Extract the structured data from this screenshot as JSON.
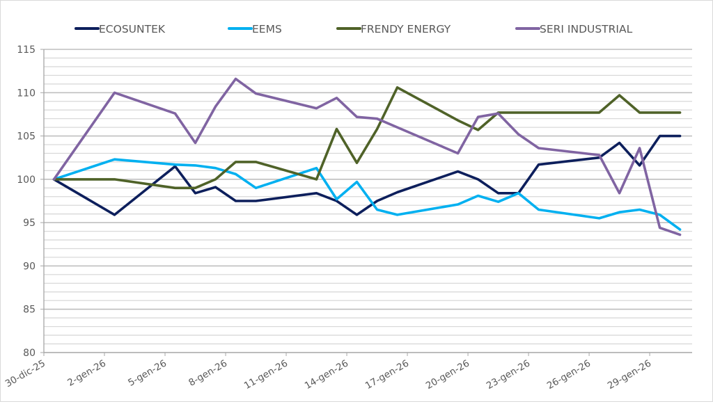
{
  "chart_data": {
    "type": "line",
    "title": "",
    "xlabel": "",
    "ylabel": "",
    "ylim": [
      80,
      115
    ],
    "y_major_step": 5,
    "y_minor_step": 1,
    "y_ticks": [
      "80",
      "85",
      "90",
      "95",
      "100",
      "105",
      "110",
      "115"
    ],
    "grid": true,
    "legend_position": "top",
    "x_tick_labels": [
      "30-dic-25",
      "2-gen-26",
      "5-gen-26",
      "8-gen-26",
      "11-gen-26",
      "14-gen-26",
      "17-gen-26",
      "20-gen-26",
      "23-gen-26",
      "26-gen-26",
      "29-gen-26"
    ],
    "x_tick_days": [
      0,
      3,
      6,
      9,
      12,
      15,
      18,
      21,
      24,
      27,
      30
    ],
    "x_days_range": [
      0,
      32.1
    ],
    "x": [
      "30-dic-25",
      "2-gen-26",
      "5-gen-26",
      "6-gen-26",
      "7-gen-26",
      "8-gen-26",
      "9-gen-26",
      "12-gen-26",
      "13-gen-26",
      "14-gen-26",
      "15-gen-26",
      "16-gen-26",
      "19-gen-26",
      "20-gen-26",
      "21-gen-26",
      "22-gen-26",
      "23-gen-26",
      "26-gen-26",
      "27-gen-26",
      "28-gen-26",
      "29-gen-26",
      "30-gen-26"
    ],
    "x_days": [
      0,
      3,
      6,
      7,
      8,
      9,
      10,
      13,
      14,
      15,
      16,
      17,
      20,
      21,
      22,
      23,
      24,
      27,
      28,
      29,
      30,
      31
    ],
    "series": [
      {
        "name": "ECOSUNTEK",
        "color": "#0d1f5c",
        "values": [
          100,
          95.9,
          101.5,
          98.4,
          99.1,
          97.5,
          97.5,
          98.4,
          97.5,
          95.9,
          97.5,
          98.5,
          100.9,
          100.0,
          98.4,
          98.4,
          101.7,
          102.5,
          104.2,
          101.6,
          105.0,
          105.0
        ]
      },
      {
        "name": "EEMS",
        "color": "#00b0f0",
        "values": [
          100,
          102.3,
          101.7,
          101.6,
          101.3,
          100.6,
          99.0,
          101.3,
          97.7,
          99.7,
          96.5,
          95.9,
          97.1,
          98.1,
          97.4,
          98.4,
          96.5,
          95.5,
          96.2,
          96.5,
          95.9,
          94.2
        ]
      },
      {
        "name": "FRENDY ENERGY",
        "color": "#4f6228",
        "values": [
          100,
          100,
          99.0,
          99.0,
          100,
          102.0,
          102.0,
          100,
          105.8,
          101.9,
          105.8,
          110.6,
          106.8,
          105.7,
          107.7,
          107.7,
          107.7,
          107.7,
          109.7,
          107.7,
          107.7,
          107.7
        ]
      },
      {
        "name": "SERI INDUSTRIAL",
        "color": "#8064a2",
        "values": [
          100,
          110.0,
          107.6,
          104.2,
          108.4,
          111.6,
          109.9,
          108.2,
          109.4,
          107.2,
          107.0,
          106.0,
          103.0,
          107.2,
          107.6,
          105.2,
          103.6,
          102.8,
          98.4,
          103.6,
          94.4,
          93.6
        ]
      }
    ]
  }
}
